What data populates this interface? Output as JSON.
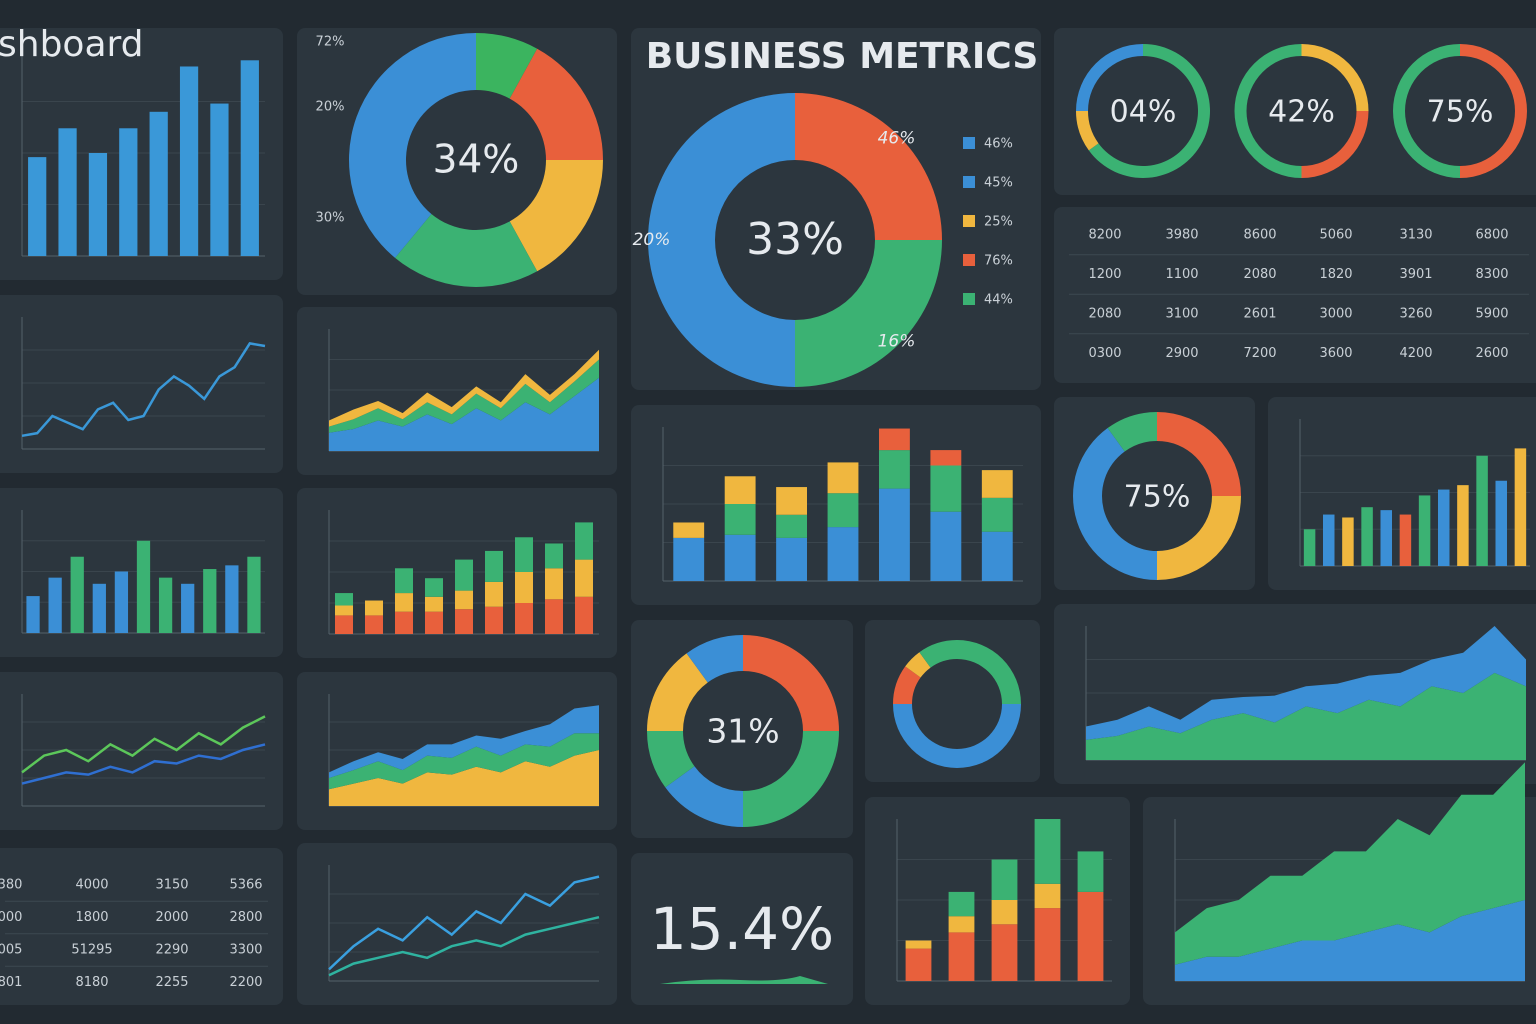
{
  "panels": [
    {
      "type": "bar",
      "title": "shboard",
      "ylim": [
        0,
        100
      ],
      "series": [
        {
          "color": "#3a98d8",
          "values": [
            48,
            62,
            50,
            62,
            70,
            92,
            74,
            95
          ]
        }
      ]
    },
    {
      "type": "donut",
      "center": "34%",
      "values": [
        8,
        17,
        17,
        19,
        39
      ],
      "colors": [
        "#3bb45f",
        "#e8603c",
        "#f0b73f",
        "#3bb273",
        "#3b8fd6"
      ],
      "side_labels": [
        "72%",
        "20%",
        "30%"
      ]
    },
    {
      "type": "donut",
      "title": "BUSINESS METRICS",
      "center": "33%",
      "values": [
        25,
        25,
        50
      ],
      "colors": [
        "#e8603c",
        "#3bb273",
        "#3b8fd6"
      ],
      "segment_labels": [
        "46%",
        "16%",
        "20%"
      ],
      "legend": [
        {
          "label": "46%",
          "color": "#3b8fd6"
        },
        {
          "label": "45%",
          "color": "#3b8fd6"
        },
        {
          "label": "25%",
          "color": "#f0b73f"
        },
        {
          "label": "76%",
          "color": "#e8603c"
        },
        {
          "label": "44%",
          "color": "#3bb273"
        }
      ]
    },
    {
      "type": "rings",
      "rings": [
        {
          "center": "04%",
          "values": [
            65,
            10,
            25
          ],
          "colors": [
            "#3bb273",
            "#f0b73f",
            "#3b8fd6"
          ]
        },
        {
          "center": "42%",
          "values": [
            25,
            25,
            50
          ],
          "colors": [
            "#f0b73f",
            "#e8603c",
            "#3bb273"
          ]
        },
        {
          "center": "75%",
          "values": [
            50,
            50
          ],
          "colors": [
            "#e8603c",
            "#3bb273"
          ]
        }
      ]
    },
    {
      "type": "table",
      "rows": [
        [
          "8200",
          "3980",
          "8600",
          "5060",
          "3130",
          "6800"
        ],
        [
          "1200",
          "1100",
          "2080",
          "1820",
          "3901",
          "8300"
        ],
        [
          "2080",
          "3100",
          "2601",
          "3000",
          "3260",
          "5900"
        ],
        [
          "0300",
          "2900",
          "7200",
          "3600",
          "4200",
          "2600"
        ]
      ]
    },
    {
      "type": "line",
      "ylim": [
        0,
        100
      ],
      "series": [
        {
          "color": "#3a98d8",
          "values": [
            10,
            12,
            25,
            20,
            15,
            30,
            35,
            22,
            25,
            45,
            55,
            48,
            38,
            55,
            62,
            80,
            78
          ]
        }
      ]
    },
    {
      "type": "area",
      "ylim": [
        0,
        100
      ],
      "series": [
        {
          "color": "#3b8fd6",
          "values": [
            15,
            18,
            25,
            20,
            30,
            22,
            35,
            25,
            40,
            30,
            45,
            60
          ]
        },
        {
          "color": "#3bb273",
          "values": [
            5,
            8,
            10,
            6,
            10,
            8,
            12,
            10,
            15,
            10,
            12,
            15
          ]
        },
        {
          "color": "#f0b73f",
          "values": [
            5,
            8,
            6,
            5,
            8,
            6,
            6,
            5,
            8,
            6,
            6,
            8
          ]
        }
      ]
    },
    {
      "type": "stacked_bar",
      "ylim": [
        0,
        100
      ],
      "series": [
        {
          "color": "#3b8fd6",
          "values": [
            28,
            30,
            28,
            35,
            60,
            45,
            32
          ]
        },
        {
          "color": "#3bb273",
          "values": [
            0,
            20,
            15,
            22,
            25,
            30,
            22
          ]
        },
        {
          "color": "#f0b73f",
          "values": [
            10,
            18,
            18,
            20,
            0,
            0,
            18
          ]
        },
        {
          "color": "#e8603c",
          "values": [
            0,
            0,
            0,
            0,
            14,
            10,
            0
          ]
        }
      ]
    },
    {
      "type": "donut",
      "center": "75%",
      "values": [
        25,
        25,
        40,
        10
      ],
      "colors": [
        "#e8603c",
        "#f0b73f",
        "#3b8fd6",
        "#3bb273"
      ]
    },
    {
      "type": "bar",
      "ylim": [
        0,
        100
      ],
      "series": [
        {
          "colors": [
            "#3bb273",
            "#3b8fd6",
            "#f0b73f",
            "#3bb273",
            "#3b8fd6",
            "#e8603c",
            "#3bb273",
            "#3b8fd6",
            "#f0b73f",
            "#3bb273",
            "#3b8fd6",
            "#f0b73f"
          ],
          "values": [
            25,
            35,
            33,
            40,
            38,
            35,
            48,
            52,
            55,
            75,
            58,
            80
          ]
        }
      ]
    },
    {
      "type": "bar",
      "ylim": [
        0,
        100
      ],
      "series": [
        {
          "colors": [
            "#3b8fd6",
            "#3b8fd6",
            "#3bb273",
            "#3b8fd6",
            "#3b8fd6",
            "#3bb273",
            "#3bb273",
            "#3b8fd6",
            "#3bb273",
            "#3b8fd6",
            "#3bb273"
          ],
          "values": [
            30,
            45,
            62,
            40,
            50,
            75,
            45,
            40,
            52,
            55,
            62
          ]
        }
      ]
    },
    {
      "type": "stacked_bar",
      "ylim": [
        0,
        100
      ],
      "series": [
        {
          "color": "#e8603c",
          "values": [
            15,
            15,
            18,
            18,
            20,
            22,
            25,
            28,
            30
          ]
        },
        {
          "color": "#f0b73f",
          "values": [
            8,
            12,
            15,
            12,
            15,
            20,
            25,
            25,
            30
          ]
        },
        {
          "color": "#3bb273",
          "values": [
            10,
            0,
            20,
            15,
            25,
            25,
            28,
            20,
            30
          ]
        }
      ]
    },
    {
      "type": "donut",
      "center": "31%",
      "values": [
        25,
        25,
        15,
        10,
        15,
        10
      ],
      "colors": [
        "#e8603c",
        "#3bb273",
        "#3b8fd6",
        "#3bb273",
        "#f0b73f",
        "#3b8fd6"
      ]
    },
    {
      "type": "donut",
      "values": [
        25,
        50,
        10,
        5,
        10
      ],
      "colors": [
        "#3bb273",
        "#3b8fd6",
        "#e8603c",
        "#f0b73f",
        "#3bb273"
      ]
    },
    {
      "type": "area",
      "ylim": [
        0,
        100
      ],
      "series": [
        {
          "color": "#3bb273",
          "values": [
            15,
            18,
            25,
            20,
            30,
            35,
            28,
            40,
            35,
            45,
            40,
            55,
            50,
            65,
            55
          ]
        },
        {
          "color": "#3b8fd6",
          "values": [
            10,
            12,
            15,
            10,
            15,
            12,
            20,
            15,
            22,
            18,
            25,
            20,
            30,
            35,
            20
          ]
        }
      ]
    },
    {
      "type": "line",
      "ylim": [
        0,
        100
      ],
      "series": [
        {
          "color": "#5cc75a",
          "values": [
            30,
            45,
            50,
            40,
            55,
            45,
            60,
            50,
            65,
            55,
            70,
            80
          ]
        },
        {
          "color": "#2f6fd1",
          "values": [
            20,
            25,
            30,
            28,
            35,
            30,
            40,
            38,
            45,
            42,
            50,
            55
          ]
        }
      ]
    },
    {
      "type": "area",
      "ylim": [
        0,
        100
      ],
      "series": [
        {
          "color": "#f0b73f",
          "values": [
            15,
            20,
            25,
            20,
            30,
            28,
            35,
            30,
            40,
            35,
            45,
            50
          ]
        },
        {
          "color": "#3bb273",
          "values": [
            10,
            12,
            15,
            12,
            15,
            15,
            18,
            15,
            15,
            18,
            20,
            15
          ]
        },
        {
          "color": "#3b8fd6",
          "values": [
            5,
            8,
            8,
            10,
            10,
            12,
            10,
            15,
            12,
            20,
            22,
            25
          ]
        }
      ]
    },
    {
      "type": "table",
      "rows": [
        [
          "380",
          "4000",
          "3150",
          "5366"
        ],
        [
          "000",
          "1800",
          "2000",
          "2800"
        ],
        [
          "005",
          "51295",
          "2290",
          "3300"
        ],
        [
          "801",
          "8180",
          "2255",
          "2200"
        ]
      ]
    },
    {
      "type": "line",
      "ylim": [
        0,
        100
      ],
      "series": [
        {
          "color": "#3aa0e0",
          "values": [
            10,
            30,
            45,
            35,
            55,
            40,
            60,
            50,
            75,
            65,
            85,
            90
          ]
        },
        {
          "color": "#2fb3a0",
          "values": [
            5,
            15,
            20,
            25,
            20,
            30,
            35,
            30,
            40,
            45,
            50,
            55
          ]
        }
      ]
    },
    {
      "type": "kpi",
      "value": "15.4%"
    },
    {
      "type": "stacked_bar",
      "ylim": [
        0,
        100
      ],
      "series": [
        {
          "color": "#e8603c",
          "values": [
            20,
            30,
            35,
            45,
            55
          ]
        },
        {
          "color": "#f0b73f",
          "values": [
            5,
            10,
            15,
            15,
            0
          ]
        },
        {
          "color": "#3bb273",
          "values": [
            0,
            15,
            25,
            40,
            25
          ]
        }
      ]
    },
    {
      "type": "area",
      "ylim": [
        0,
        100
      ],
      "series": [
        {
          "color": "#3b8fd6",
          "values": [
            10,
            15,
            15,
            20,
            25,
            25,
            30,
            35,
            30,
            40,
            45,
            50
          ]
        },
        {
          "color": "#3bb273",
          "values": [
            20,
            30,
            35,
            45,
            40,
            55,
            50,
            65,
            60,
            75,
            70,
            85
          ]
        }
      ]
    }
  ]
}
